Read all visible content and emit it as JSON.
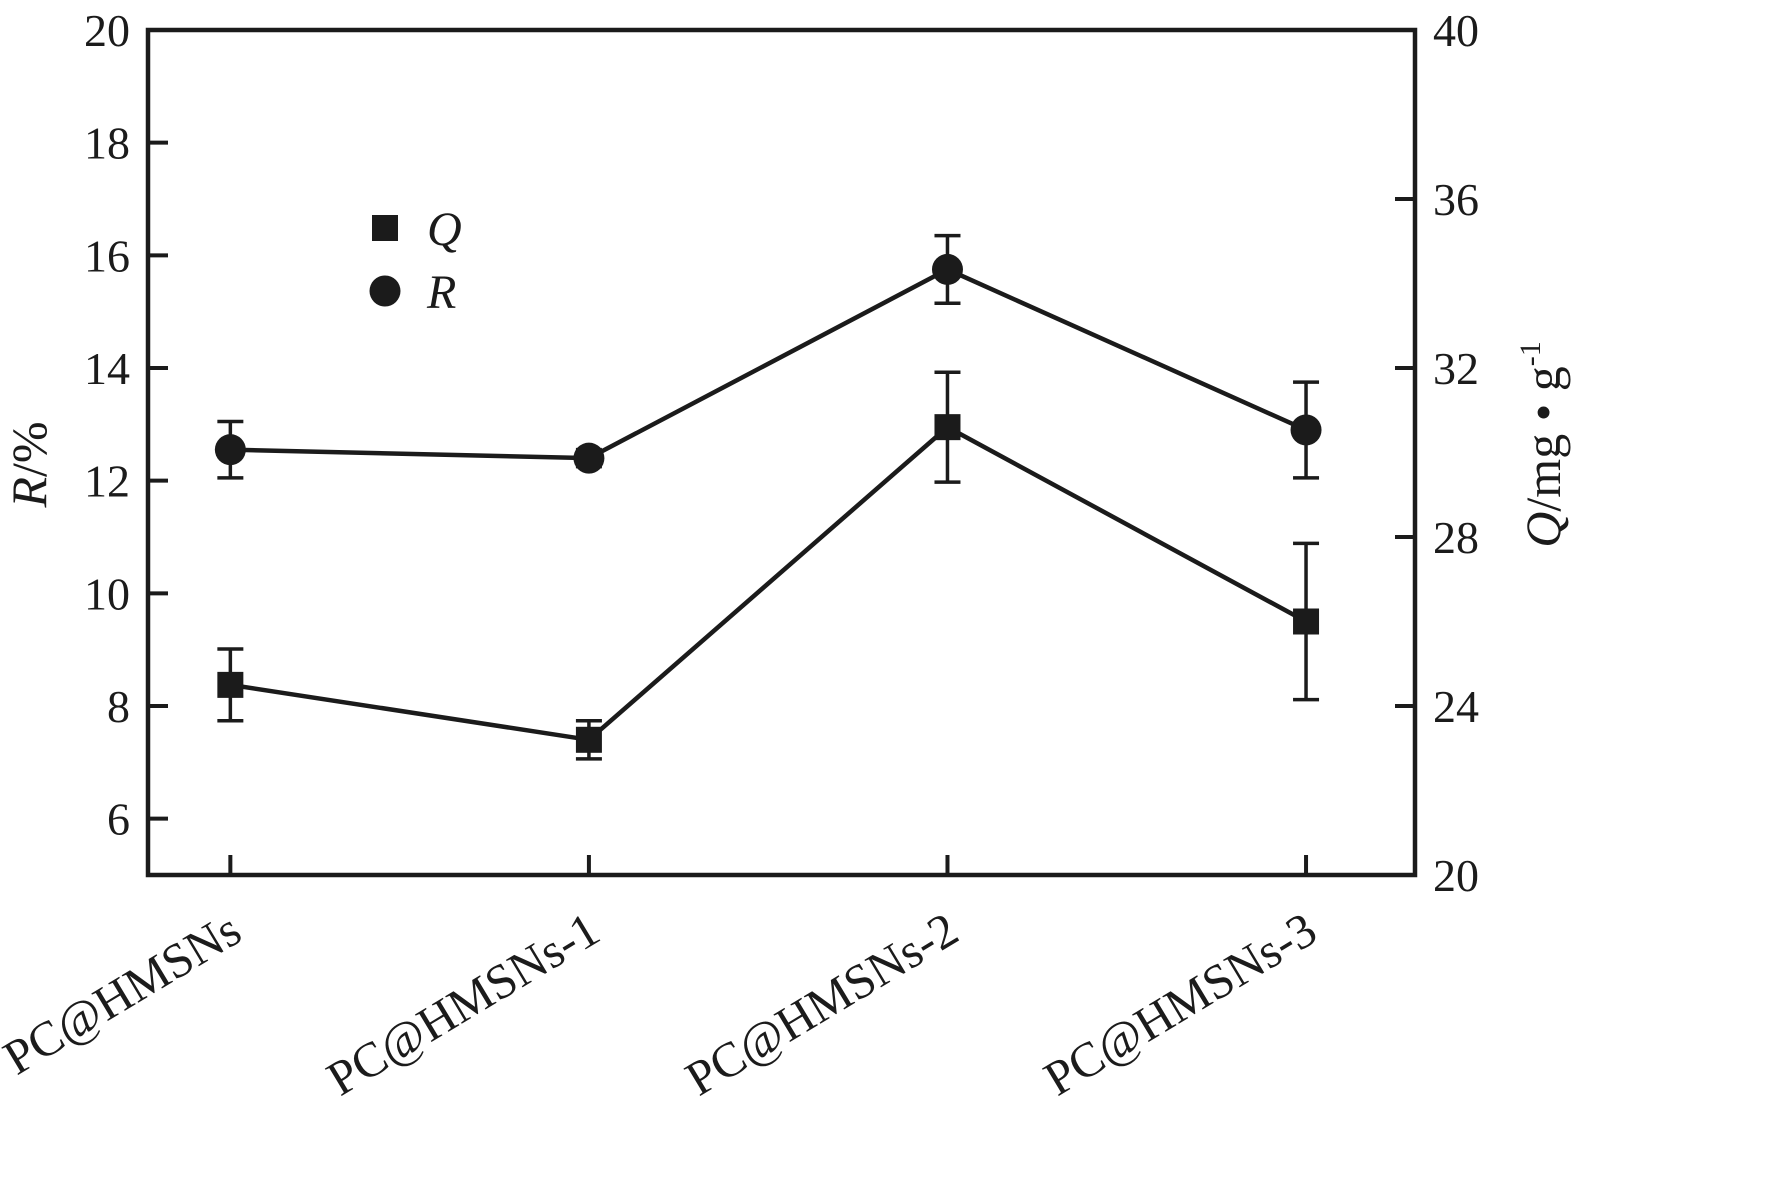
{
  "chart_data": {
    "type": "line",
    "title": "",
    "categories": [
      "PC@HMSNs",
      "PC@HMSNs-1",
      "PC@HMSNs-2",
      "PC@HMSNs-3"
    ],
    "series": [
      {
        "name": "Q",
        "marker": "square",
        "axis": "right",
        "values": [
          24.5,
          23.2,
          30.6,
          26.0
        ],
        "errors": [
          0.85,
          0.45,
          1.3,
          1.85
        ]
      },
      {
        "name": "R",
        "marker": "circle",
        "axis": "left",
        "values": [
          12.55,
          12.4,
          15.75,
          12.9
        ],
        "errors": [
          0.5,
          0.15,
          0.6,
          0.85
        ]
      }
    ],
    "axes": {
      "left": {
        "label": "R/%",
        "label_parts": [
          {
            "t": "R",
            "italic": true
          },
          {
            "t": "/%"
          }
        ],
        "range": [
          5,
          20
        ],
        "ticks": [
          6,
          8,
          10,
          12,
          14,
          16,
          18,
          20
        ]
      },
      "right": {
        "label": "Q/mg·g⁻¹",
        "label_parts": [
          {
            "t": "Q",
            "italic": true
          },
          {
            "t": "/mg • g"
          },
          {
            "t": "-1",
            "sup": true
          }
        ],
        "range": [
          20,
          40
        ],
        "ticks": [
          20,
          24,
          28,
          32,
          36,
          40
        ]
      },
      "bottom": {
        "label": ""
      }
    },
    "legend": {
      "position": "upper-left-inside",
      "entries": [
        "Q",
        "R"
      ]
    },
    "grid": false,
    "color": "#1b1b1b",
    "background": "#ffffff"
  }
}
